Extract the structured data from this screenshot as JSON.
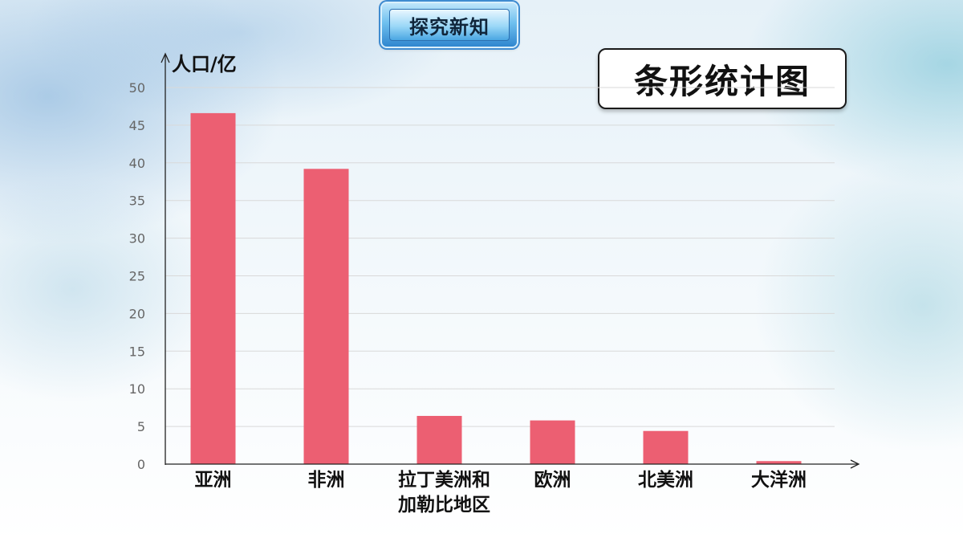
{
  "header": {
    "badge_label": "探究新知"
  },
  "chart_title": "条形统计图",
  "chart_data": {
    "type": "bar",
    "ylabel": "人口/亿",
    "xlabel": "",
    "ylim": [
      0,
      50
    ],
    "yticks": [
      0,
      5,
      10,
      15,
      20,
      25,
      30,
      35,
      40,
      45,
      50
    ],
    "grid": true,
    "categories": [
      [
        "亚洲"
      ],
      [
        "非洲"
      ],
      [
        "拉丁美洲和",
        "加勒比地区"
      ],
      [
        "欧洲"
      ],
      [
        "北美洲"
      ],
      [
        "大洋洲"
      ]
    ],
    "values": [
      46.6,
      39.2,
      6.4,
      5.8,
      4.4,
      0.4
    ],
    "bar_color": "#ec5f72"
  }
}
